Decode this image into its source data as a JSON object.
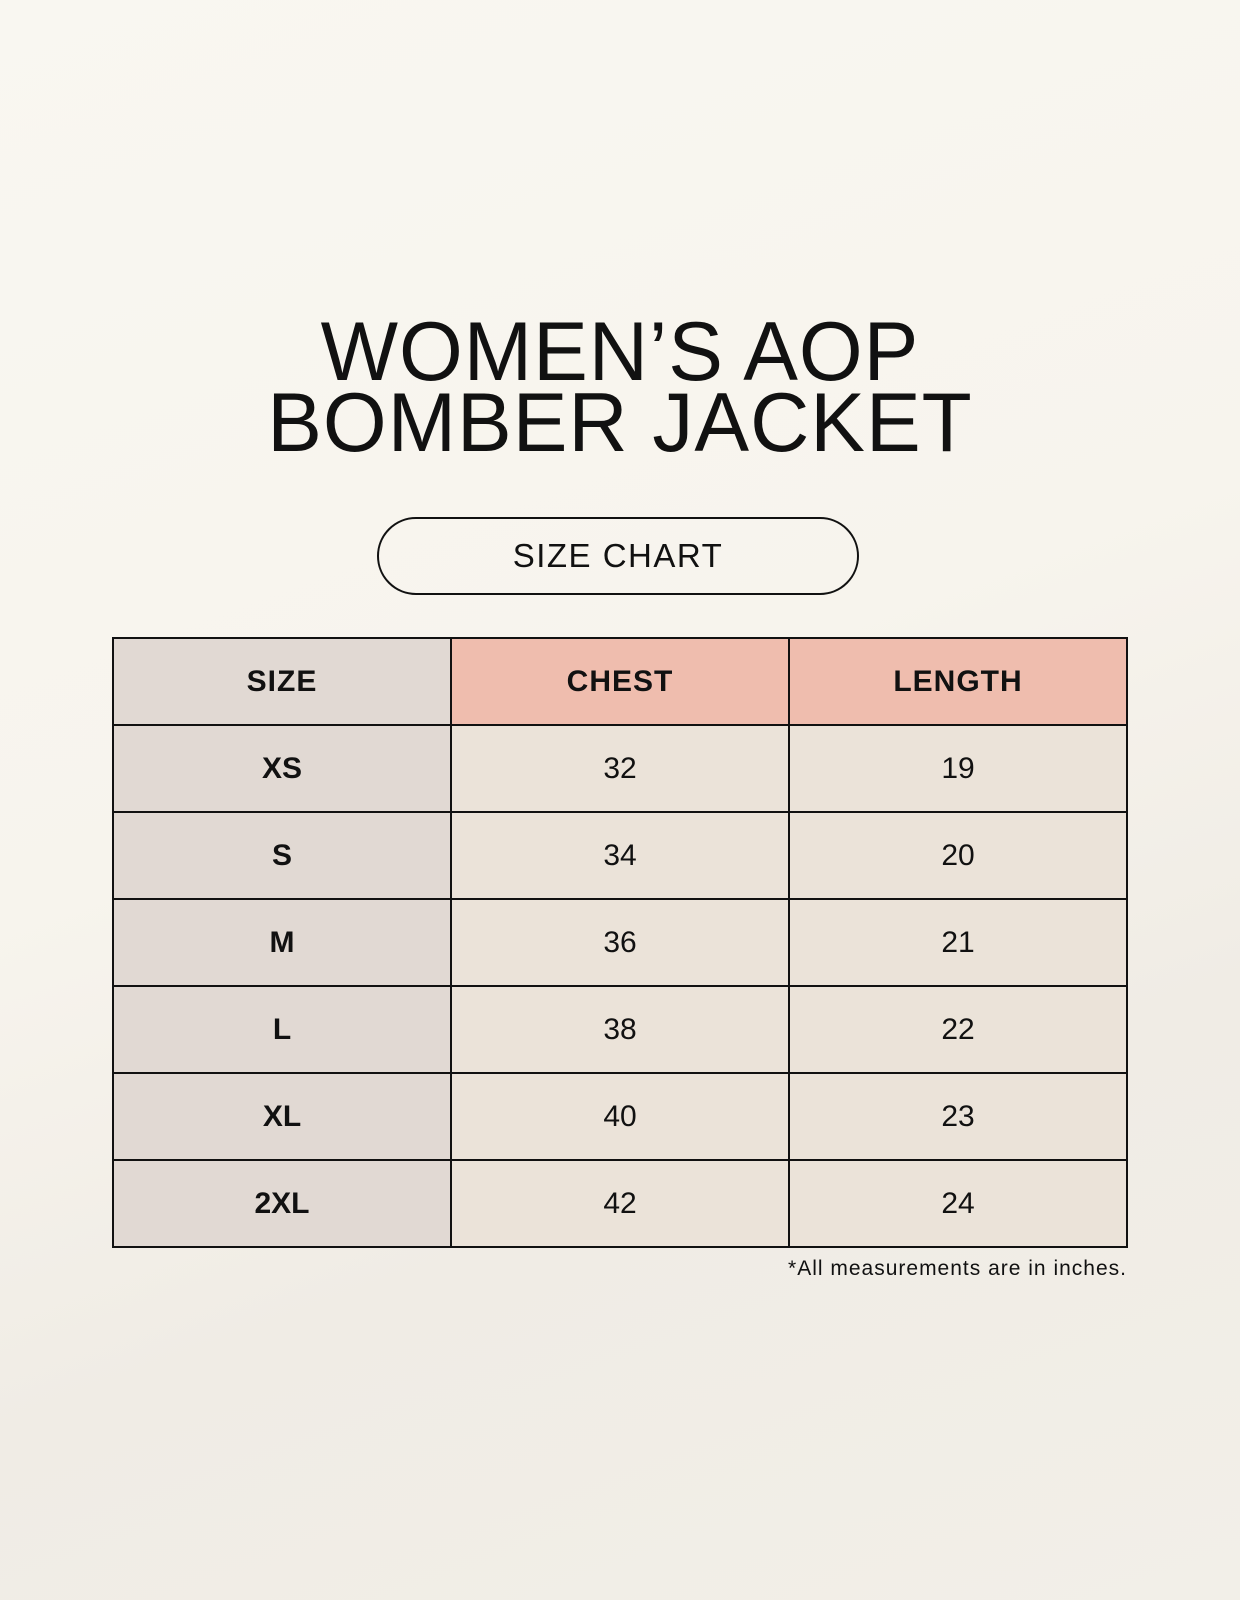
{
  "title": {
    "line1": "WOMEN’S AOP",
    "line2": "BOMBER JACKET"
  },
  "subtitle": "SIZE CHART",
  "table": {
    "headers": [
      "SIZE",
      "CHEST",
      "LENGTH"
    ],
    "rows": [
      [
        "XS",
        "32",
        "19"
      ],
      [
        "S",
        "34",
        "20"
      ],
      [
        "M",
        "36",
        "21"
      ],
      [
        "L",
        "38",
        "22"
      ],
      [
        "XL",
        "40",
        "23"
      ],
      [
        "2XL",
        "42",
        "24"
      ]
    ]
  },
  "footnote": "*All measurements are in inches.",
  "colors": {
    "header_accent": "#efbdae",
    "size_column": "#e1d9d3",
    "value_cells": "#ebe3d9"
  }
}
